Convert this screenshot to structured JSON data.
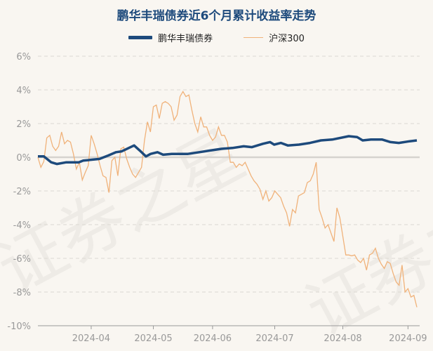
{
  "watermark": "证券之星",
  "chart_data": {
    "type": "line",
    "title": "鹏华丰瑞债券近6个月累计收益率走势",
    "xlabel": "",
    "ylabel": "",
    "ylim": [
      -10,
      6
    ],
    "yticks": [
      6,
      4,
      2,
      0,
      -2,
      -4,
      -6,
      -8,
      -10
    ],
    "ytick_labels": [
      "6%",
      "4%",
      "2%",
      "0%",
      "-2%",
      "-4%",
      "-6%",
      "-8%",
      "-10%"
    ],
    "grid": true,
    "legend_position": "top-center",
    "x_count": 129,
    "xticks": [
      {
        "index": 18,
        "label": "2024-04"
      },
      {
        "index": 39,
        "label": "2024-05"
      },
      {
        "index": 59,
        "label": "2024-06"
      },
      {
        "index": 80,
        "label": "2024-07"
      },
      {
        "index": 103,
        "label": "2024-08"
      },
      {
        "index": 125,
        "label": "2024-09"
      }
    ],
    "series": [
      {
        "name": "鹏华丰瑞债券",
        "color": "#1d4a7c",
        "points": [
          [
            0,
            0.05
          ],
          [
            2,
            0.05
          ],
          [
            4.5,
            -0.3
          ],
          [
            6.4,
            -0.4
          ],
          [
            9.6,
            -0.3
          ],
          [
            13.8,
            -0.3
          ],
          [
            15.3,
            -0.2
          ],
          [
            20.8,
            -0.1
          ],
          [
            23.7,
            0.1
          ],
          [
            26.4,
            0.3
          ],
          [
            28.3,
            0.35
          ],
          [
            32.5,
            0.7
          ],
          [
            34.4,
            0.4
          ],
          [
            36.5,
            0.05
          ],
          [
            38.1,
            0.2
          ],
          [
            40.4,
            0.3
          ],
          [
            42.3,
            0.15
          ],
          [
            45.2,
            0.2
          ],
          [
            50.7,
            0.2
          ],
          [
            54.5,
            0.3
          ],
          [
            58.2,
            0.4
          ],
          [
            62,
            0.5
          ],
          [
            65.7,
            0.55
          ],
          [
            69.5,
            0.65
          ],
          [
            72.3,
            0.6
          ],
          [
            76,
            0.8
          ],
          [
            78.4,
            0.9
          ],
          [
            79.8,
            0.75
          ],
          [
            82.1,
            0.85
          ],
          [
            84.4,
            0.7
          ],
          [
            88.2,
            0.75
          ],
          [
            91.9,
            0.85
          ],
          [
            95.6,
            1.0
          ],
          [
            99.4,
            1.05
          ],
          [
            105,
            1.25
          ],
          [
            107.8,
            1.2
          ],
          [
            109.7,
            1.0
          ],
          [
            112.5,
            1.05
          ],
          [
            116.3,
            1.05
          ],
          [
            119.1,
            0.9
          ],
          [
            121.9,
            0.85
          ],
          [
            125.6,
            0.95
          ],
          [
            128,
            1.0
          ]
        ]
      },
      {
        "name": "沪深300",
        "color": "#f0b27a",
        "values": [
          0,
          -0.6,
          -0.25,
          1.15,
          1.3,
          0.65,
          0.4,
          0.65,
          1.5,
          0.8,
          1.0,
          0.9,
          0.2,
          -0.7,
          -0.3,
          -1.35,
          -0.9,
          -0.5,
          1.3,
          0.8,
          0.2,
          -0.5,
          -1.1,
          -1.2,
          -2.1,
          -0.2,
          0,
          -1.1,
          0.5,
          0.6,
          -0.1,
          -0.6,
          -1.0,
          -1.2,
          -0.9,
          -0.6,
          1.0,
          2.1,
          1.5,
          3.0,
          3.1,
          2.3,
          3.2,
          3.3,
          3.2,
          3.0,
          2.2,
          2.5,
          3.6,
          3.9,
          3.6,
          3.7,
          2.8,
          2.0,
          1.5,
          2.4,
          1.8,
          1.8,
          1.3,
          1.0,
          1.2,
          1.8,
          1.3,
          1.3,
          0.9,
          -0.3,
          -0.3,
          -0.6,
          -0.4,
          -0.5,
          -0.3,
          -0.7,
          -1.1,
          -1.4,
          -1.6,
          -1.9,
          -2.5,
          -2.0,
          -2.6,
          -2.4,
          -2.0,
          -2.2,
          -2.4,
          -2.9,
          -3.3,
          -4.1,
          -3.1,
          -3.3,
          -2.3,
          -2.2,
          -2.1,
          -1.5,
          -1.4,
          -1.0,
          -0.3,
          -3.1,
          -3.6,
          -4.2,
          -4.0,
          -4.5,
          -5.0,
          -3.0,
          -3.6,
          -4.7,
          -5.8,
          -5.8,
          -5.85,
          -5.8,
          -6.1,
          -6.25,
          -6.0,
          -6.7,
          -5.8,
          -5.7,
          -5.4,
          -6.0,
          -6.35,
          -6.6,
          -6.2,
          -6.3,
          -6.9,
          -7.4,
          -7.6,
          -6.4,
          -8.0,
          -7.8,
          -8.3,
          -8.2,
          -8.9
        ]
      }
    ]
  }
}
